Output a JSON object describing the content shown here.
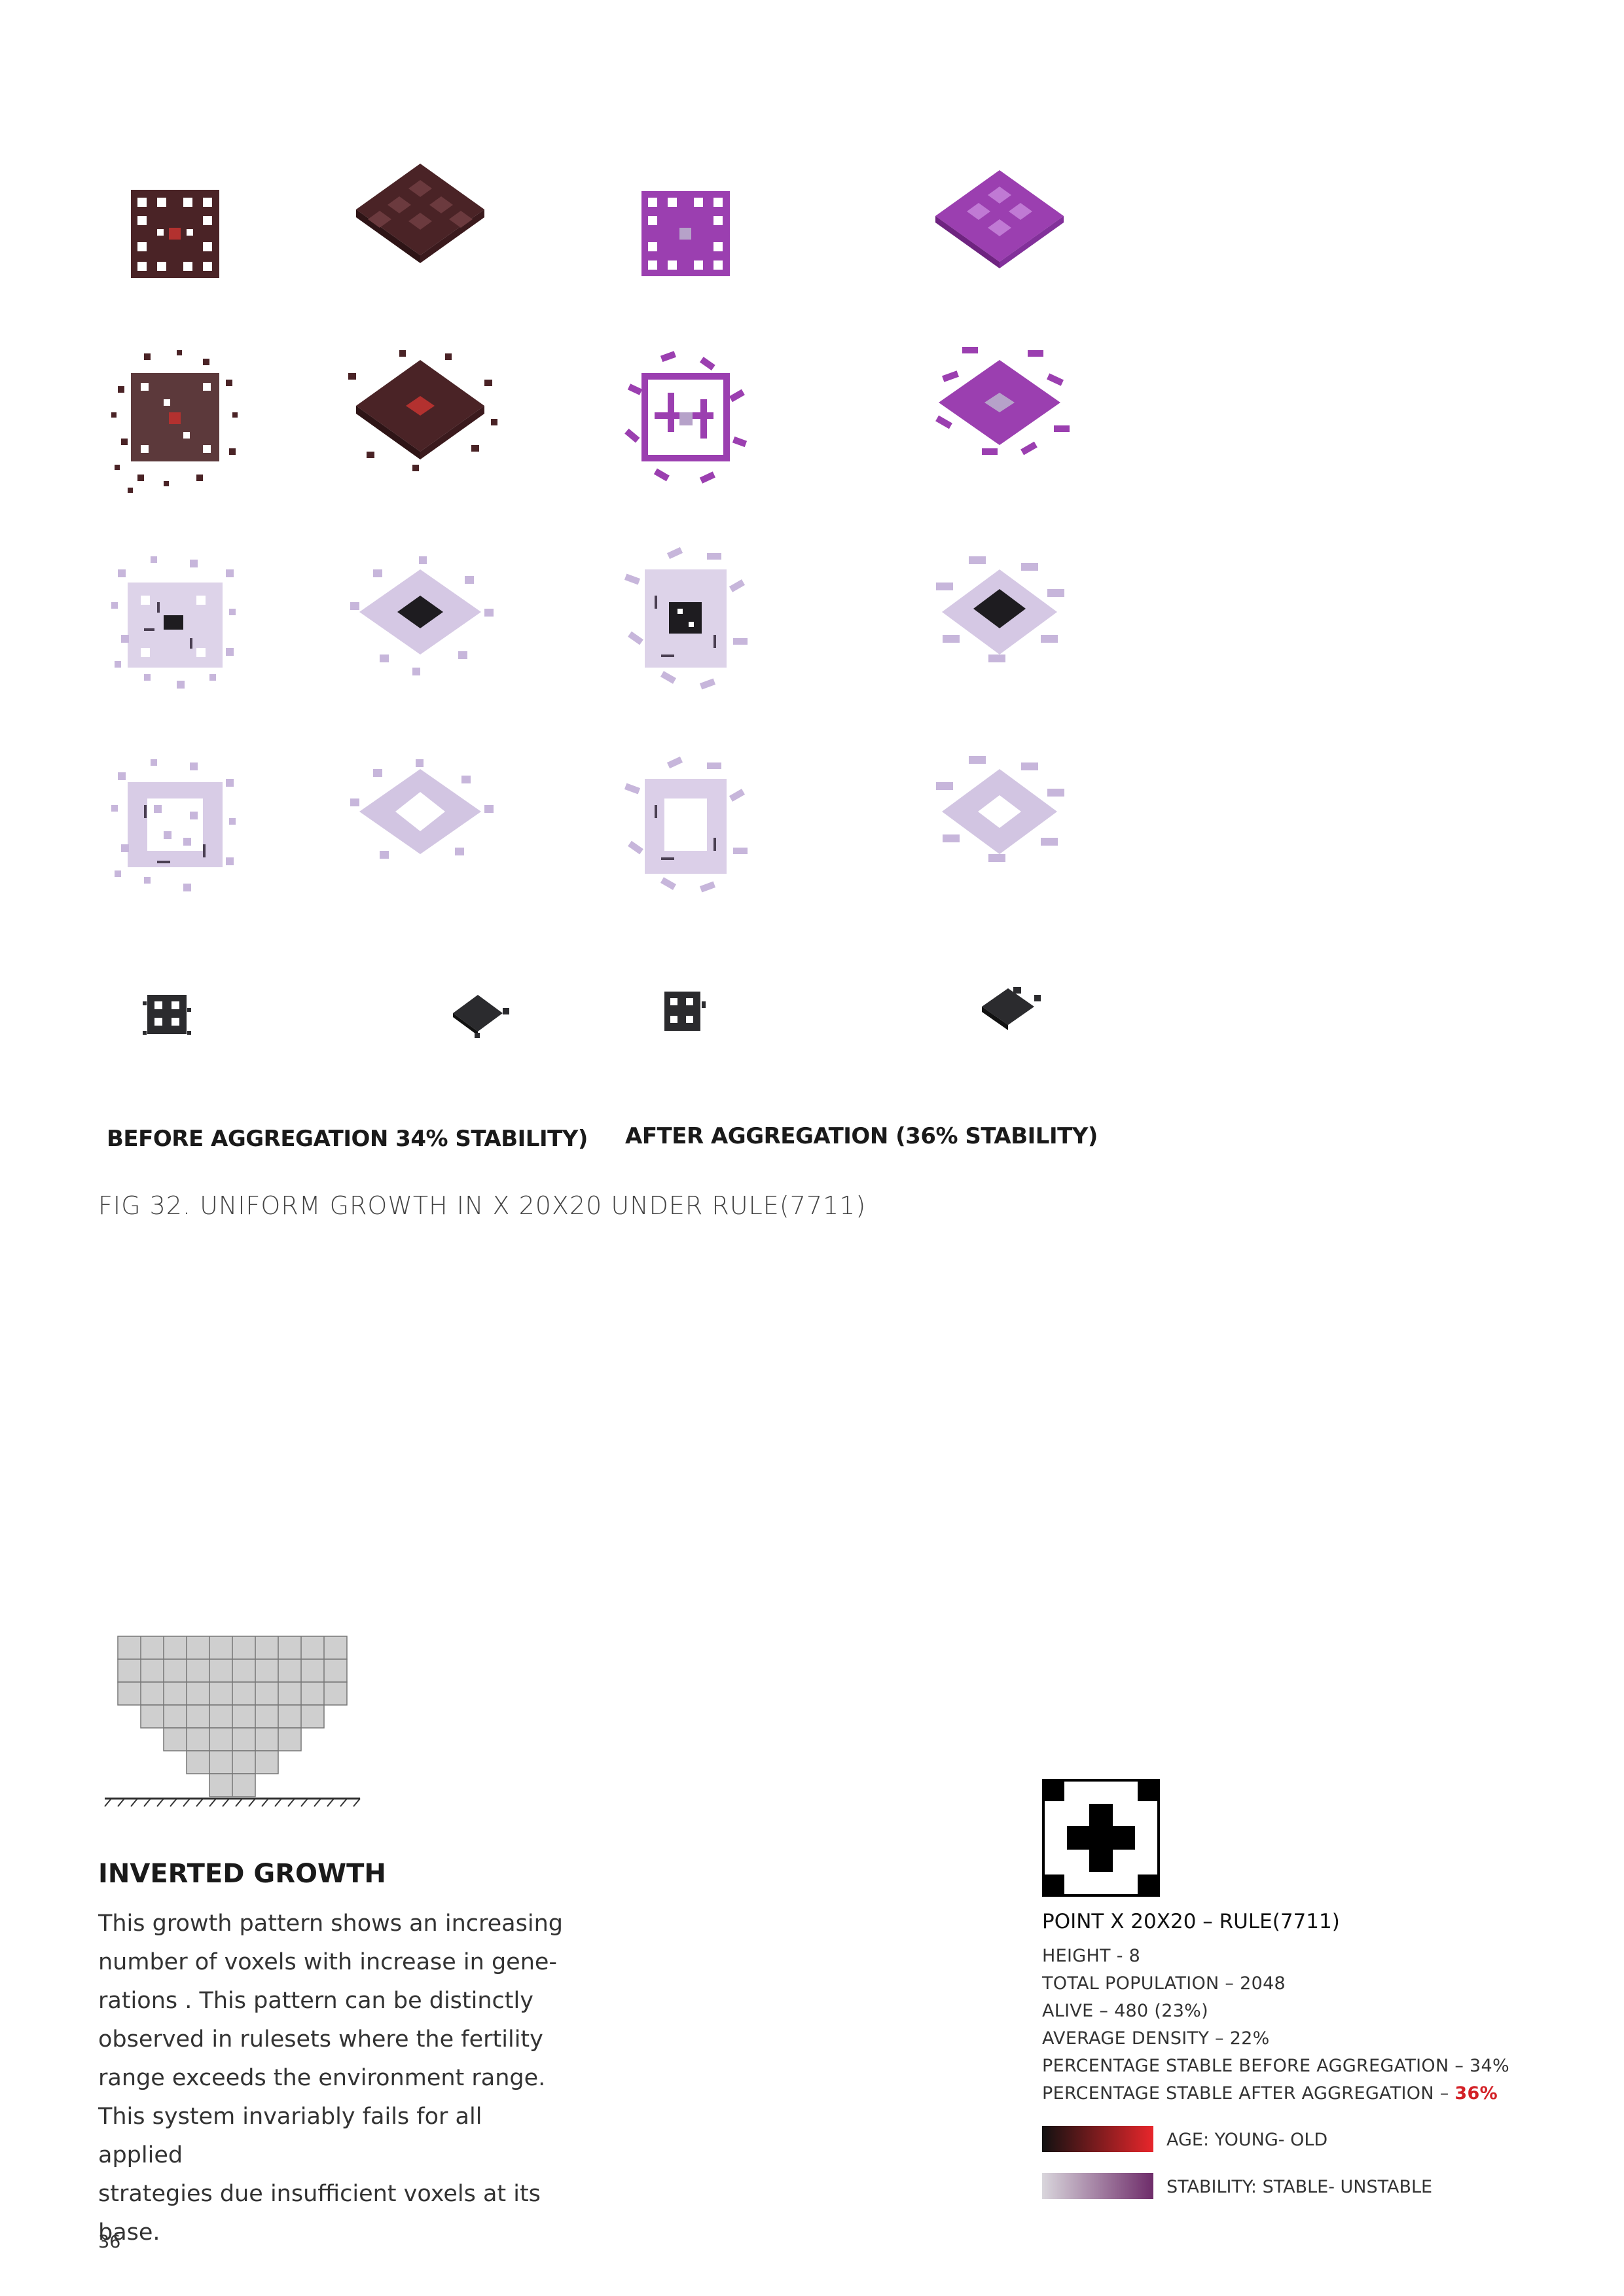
{
  "figure": {
    "label_before": "BEFORE AGGREGATION 34% STABILITY)",
    "label_after": "AFTER AGGREGATION (36% STABILITY)",
    "caption": "FIG 32. UNIFORM GROWTH IN X 20X20 UNDER RULE(7711)"
  },
  "section": {
    "title": "INVERTED GROWTH",
    "body_lines": [
      "This growth pattern shows an increasing",
      "number of voxels with increase in gene-",
      "rations . This pattern can be distinctly",
      "observed in rulesets where the fertility",
      "range exceeds the environment range.",
      "This system invariably fails for all applied",
      "strategies due insufficient voxels at its",
      "base."
    ]
  },
  "rule_box": {
    "title": "POINT X 20X20 – RULE(7711)",
    "height": "HEIGHT - 8",
    "total_population": "TOTAL POPULATION – 2048",
    "alive": "ALIVE – 480 (23%)",
    "average_density": "AVERAGE DENSITY  – 22%",
    "stable_before": "PERCENTAGE STABLE BEFORE AGGREGATION – 34%",
    "stable_after_prefix": "PERCENTAGE STABLE AFTER AGGREGATION – ",
    "stable_after_value": "36%"
  },
  "legend": {
    "age_label": "AGE: YOUNG- OLD",
    "stability_label": "STABILITY: STABLE- UNSTABLE",
    "age_colors": [
      "#111111",
      "#e8262b"
    ],
    "stability_colors": [
      "#d9d6dc",
      "#6e2c6a"
    ]
  },
  "page_number": "36",
  "colors": {
    "dark_red": "#4a2326",
    "purple": "#9b3fb0",
    "lavender": "#c7b6db",
    "dark_grey": "#2b2b2e"
  }
}
